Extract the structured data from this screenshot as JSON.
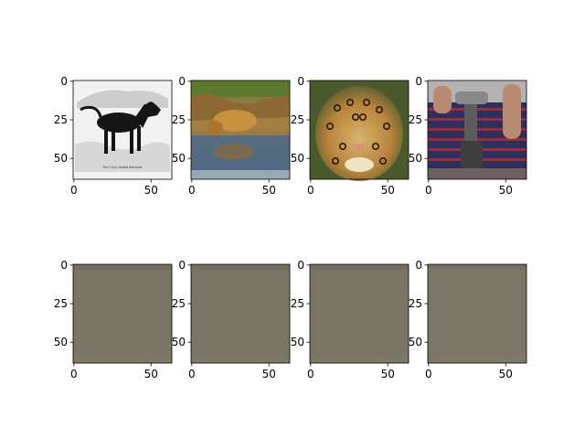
{
  "chart_data": {
    "type": "image-grid",
    "grid": {
      "rows": 2,
      "cols": 4
    },
    "axis": {
      "x_range": [
        -0.5,
        63.5
      ],
      "y_range": [
        -0.5,
        63.5
      ],
      "y_inverted": true,
      "x_ticks": [
        0,
        50
      ],
      "y_ticks": [
        0,
        25,
        50
      ]
    },
    "panels": [
      {
        "row": 0,
        "col": 0,
        "content": "dog-illustration",
        "caption_text": "The Curly-Coated Retriever"
      },
      {
        "row": 0,
        "col": 1,
        "content": "lion-drinking-at-pond"
      },
      {
        "row": 0,
        "col": 2,
        "content": "jaguar-face"
      },
      {
        "row": 0,
        "col": 3,
        "content": "person-holding-power-drill"
      },
      {
        "row": 1,
        "col": 0,
        "content": "flat-gray-brown-output",
        "fill_color": "#7a7565"
      },
      {
        "row": 1,
        "col": 1,
        "content": "flat-gray-brown-output",
        "fill_color": "#7b7565"
      },
      {
        "row": 1,
        "col": 2,
        "content": "flat-gray-brown-output",
        "fill_color": "#7a7464"
      },
      {
        "row": 1,
        "col": 3,
        "content": "flat-gray-brown-output",
        "fill_color": "#7b7666"
      }
    ]
  }
}
